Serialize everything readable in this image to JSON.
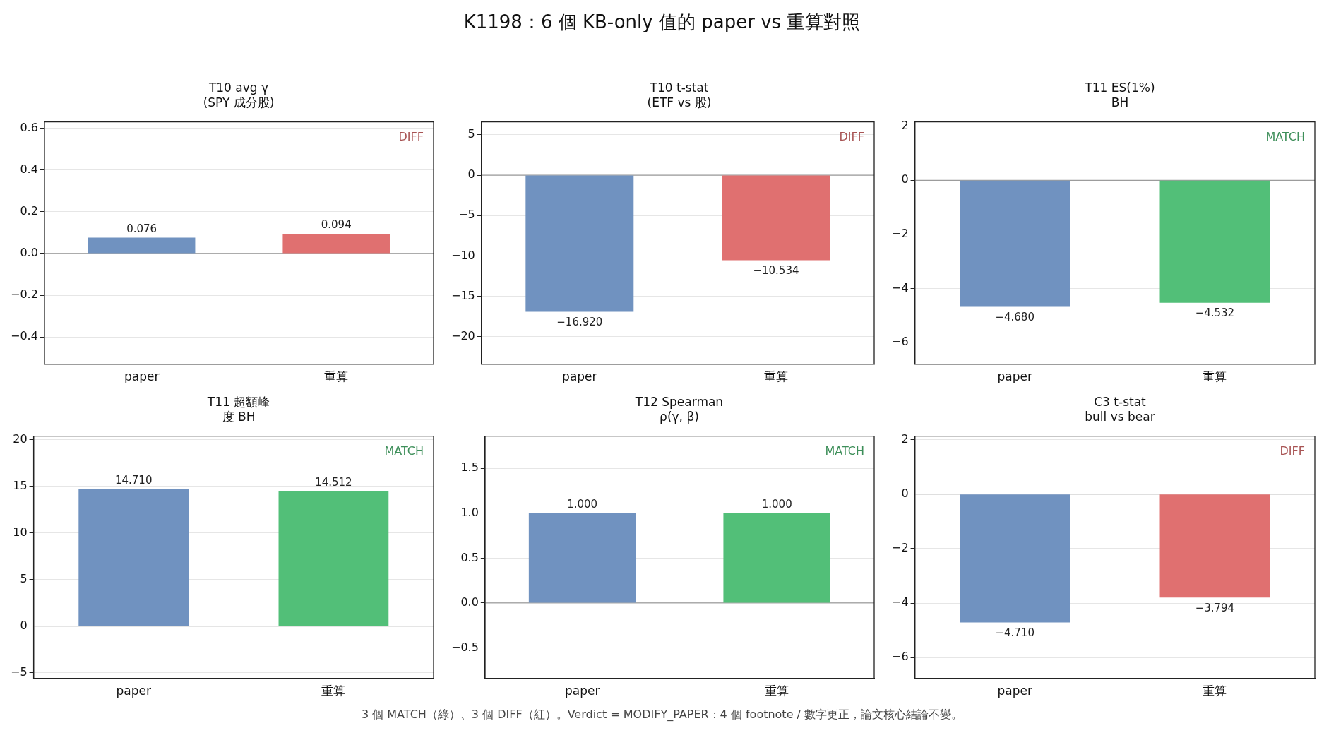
{
  "chart_data": [
    {
      "type": "bar",
      "title": "T10 avg γ\n(SPY 成分股)",
      "annotations": [
        "K1198：6 個 KB-only 值的 paper vs 重算對照",
        "DIFF",
        "3 個 MATCH（綠）、3 個 DIFF（紅）。Verdict = MODIFY_PAPER：4 個 footnote / 數字更正，論文核心結論不變。"
      ],
      "categories": [
        "paper",
        "重算"
      ],
      "values": [
        0.076,
        0.094
      ],
      "value_labels": [
        "0.076",
        "0.094"
      ],
      "colors": [
        "#7092c0",
        "#e07070"
      ],
      "ylim": [
        -0.53,
        0.63
      ],
      "yticks": [
        {
          "value": -0.4,
          "label": "−0.4"
        },
        {
          "value": -0.2,
          "label": "−0.2"
        },
        {
          "value": 0,
          "label": "0.0"
        },
        0.2,
        0.4,
        0.6
      ],
      "grid": "y",
      "ref_lines": [
        {
          "axis": "y",
          "value": 0,
          "color": "#888888"
        }
      ]
    },
    {
      "type": "bar",
      "title": "T10 t-stat\n(ETF vs 股)",
      "annotations": [
        "DIFF"
      ],
      "categories": [
        "paper",
        "重算"
      ],
      "values": [
        -16.92,
        -10.534
      ],
      "value_labels": [
        "−16.920",
        "−10.534"
      ],
      "colors": [
        "#7092c0",
        "#e07070"
      ],
      "ylim": [
        -23.4,
        6.6
      ],
      "yticks": [
        {
          "value": -20,
          "label": "−20"
        },
        {
          "value": -15,
          "label": "−15"
        },
        {
          "value": -10,
          "label": "−10"
        },
        {
          "value": -5,
          "label": "−5"
        },
        0,
        5
      ],
      "grid": "y",
      "ref_lines": [
        {
          "axis": "y",
          "value": 0,
          "color": "#888888"
        }
      ]
    },
    {
      "type": "bar",
      "title": "T11 ES(1%)\nBH",
      "annotations": [
        "MATCH"
      ],
      "categories": [
        "paper",
        "重算"
      ],
      "values": [
        -4.68,
        -4.532
      ],
      "value_labels": [
        "−4.680",
        "−4.532"
      ],
      "colors": [
        "#7092c0",
        "#52bf78"
      ],
      "ylim": [
        -6.8,
        2.16
      ],
      "yticks": [
        {
          "value": -6,
          "label": "−6"
        },
        {
          "value": -4,
          "label": "−4"
        },
        {
          "value": -2,
          "label": "−2"
        },
        0,
        2
      ],
      "grid": "y",
      "ref_lines": [
        {
          "axis": "y",
          "value": 0,
          "color": "#888888"
        }
      ]
    },
    {
      "type": "bar",
      "title": "T11 超額峰度 BH",
      "annotations": [
        "MATCH"
      ],
      "categories": [
        "paper",
        "重算"
      ],
      "values": [
        14.71,
        14.512
      ],
      "value_labels": [
        "14.710",
        "14.512"
      ],
      "colors": [
        "#7092c0",
        "#52bf78"
      ],
      "ylim": [
        -5.6,
        20.4
      ],
      "yticks": [
        {
          "value": -5,
          "label": "−5"
        },
        0,
        5,
        10,
        15,
        20
      ],
      "grid": "y",
      "ref_lines": [
        {
          "axis": "y",
          "value": 0,
          "color": "#888888"
        }
      ]
    },
    {
      "type": "bar",
      "title": "T12 Spearman\nρ(γ, β)",
      "annotations": [
        "MATCH"
      ],
      "categories": [
        "paper",
        "重算"
      ],
      "values": [
        1.0,
        1.0
      ],
      "value_labels": [
        "1.000",
        "1.000"
      ],
      "colors": [
        "#7092c0",
        "#52bf78"
      ],
      "ylim": [
        -0.84,
        1.86
      ],
      "yticks": [
        {
          "value": -0.5,
          "label": "−0.5"
        },
        {
          "value": 0,
          "label": "0.0"
        },
        0.5,
        {
          "value": 1,
          "label": "1.0"
        },
        1.5
      ],
      "grid": "y",
      "ref_lines": [
        {
          "axis": "y",
          "value": 0,
          "color": "#888888"
        }
      ]
    },
    {
      "type": "bar",
      "title": "C3 t-stat\nbull vs bear",
      "annotations": [
        "DIFF"
      ],
      "categories": [
        "paper",
        "重算"
      ],
      "values": [
        -4.71,
        -3.794
      ],
      "value_labels": [
        "−4.710",
        "−3.794"
      ],
      "colors": [
        "#7092c0",
        "#e07070"
      ],
      "ylim": [
        -6.76,
        2.13
      ],
      "yticks": [
        {
          "value": -6,
          "label": "−6"
        },
        {
          "value": -4,
          "label": "−4"
        },
        {
          "value": -2,
          "label": "−2"
        },
        0,
        2
      ],
      "grid": "y",
      "ref_lines": [
        {
          "axis": "y",
          "value": 0,
          "color": "#888888"
        }
      ]
    }
  ]
}
